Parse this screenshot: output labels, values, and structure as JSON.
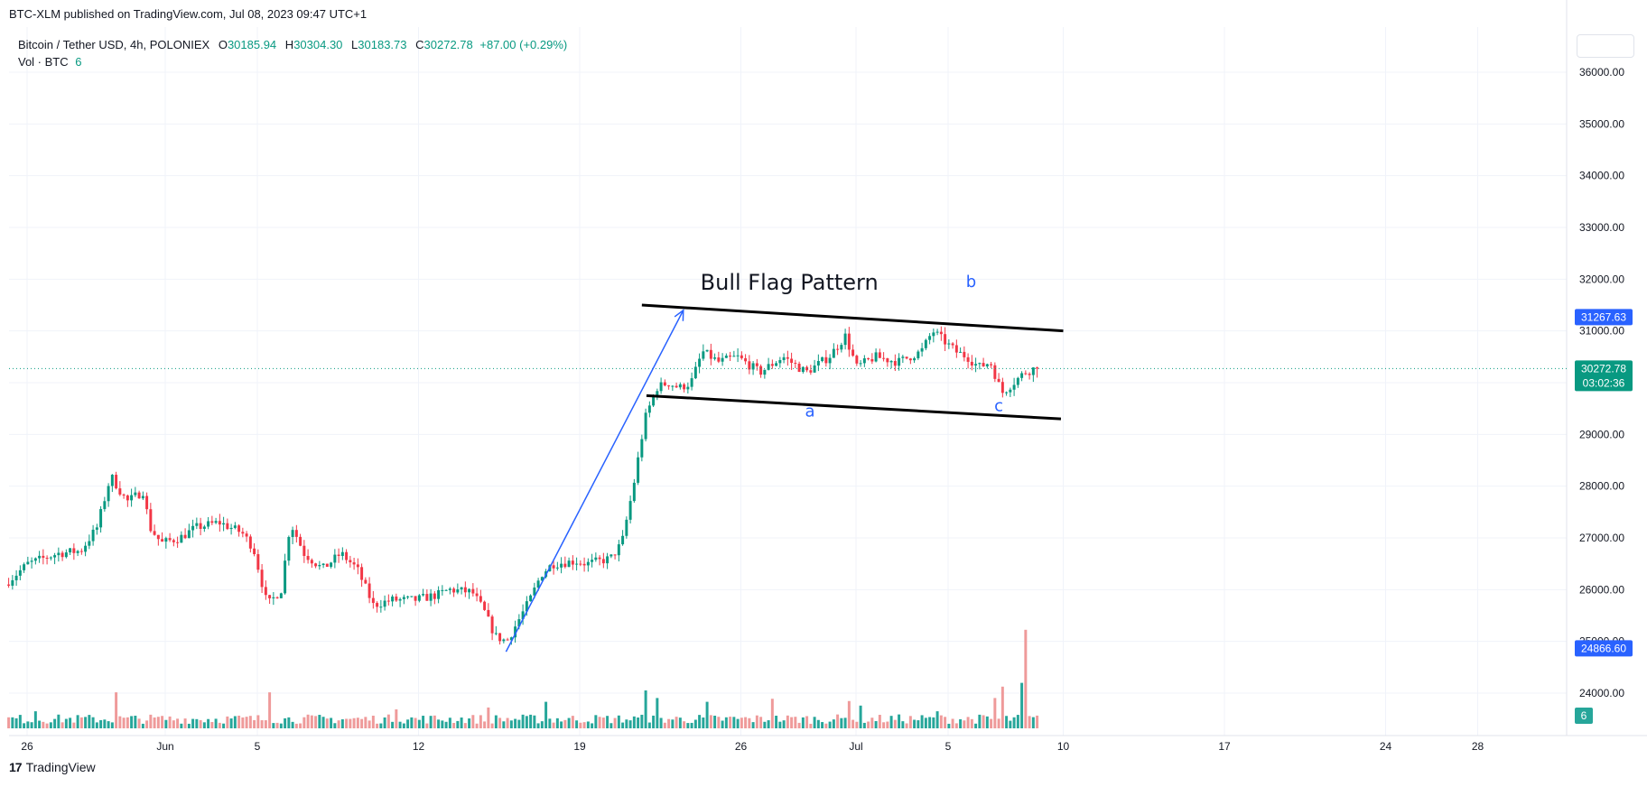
{
  "header": {
    "publish_line": "BTC-XLM published on TradingView.com, Jul 08, 2023 09:47 UTC+1"
  },
  "legend": {
    "symbol_line": "Bitcoin / Tether USD, 4h, POLONIEX",
    "open_label": "O",
    "open": "30185.94",
    "high_label": "H",
    "high": "30304.30",
    "low_label": "L",
    "low": "30183.73",
    "close_label": "C",
    "close": "30272.78",
    "change": "+87.00 (+0.29%)",
    "vol_label": "Vol · BTC",
    "vol_value": "6"
  },
  "footer": {
    "brand": "TradingView"
  },
  "colors": {
    "up": "#089981",
    "down": "#f23645",
    "vol_up": "#26a69a",
    "vol_down": "#ef9a9a",
    "annotation": "#2962ff",
    "grid": "#f0f3fa"
  },
  "chart_data": {
    "type": "candlestick",
    "symbol": "Bitcoin / Tether USD",
    "interval": "4h",
    "exchange": "POLONIEX",
    "ylim": [
      23700,
      36500
    ],
    "y_ticks": [
      24000,
      25000,
      26000,
      27000,
      28000,
      29000,
      30000,
      31000,
      32000,
      33000,
      34000,
      35000,
      36000
    ],
    "y_tick_labels": [
      "24000.00",
      "25000.00",
      "26000.00",
      "27000.00",
      "28000.00",
      "29000.00",
      "30000.00",
      "31000.00",
      "32000.00",
      "33000.00",
      "34000.00",
      "35000.00",
      "36000.00"
    ],
    "x_ticks": [
      {
        "label": "26",
        "day": -6
      },
      {
        "label": "Jun",
        "day": 0
      },
      {
        "label": "5",
        "day": 4
      },
      {
        "label": "12",
        "day": 11
      },
      {
        "label": "19",
        "day": 18
      },
      {
        "label": "26",
        "day": 25
      },
      {
        "label": "Jul",
        "day": 30
      },
      {
        "label": "5",
        "day": 34
      },
      {
        "label": "10",
        "day": 39
      },
      {
        "label": "17",
        "day": 46
      },
      {
        "label": "24",
        "day": 53
      },
      {
        "label": "28",
        "day": 57
      }
    ],
    "price_path": [
      [
        -6.8,
        26100
      ],
      [
        -5.8,
        26500
      ],
      [
        -4.5,
        26700
      ],
      [
        -3.5,
        26750
      ],
      [
        -2.8,
        27200
      ],
      [
        -2.2,
        28200
      ],
      [
        -1.5,
        27700
      ],
      [
        -0.8,
        27900
      ],
      [
        -0.5,
        27200
      ],
      [
        0.0,
        26900
      ],
      [
        0.8,
        27000
      ],
      [
        1.5,
        27200
      ],
      [
        2.5,
        27300
      ],
      [
        3.5,
        27100
      ],
      [
        4.0,
        26800
      ],
      [
        4.6,
        25700
      ],
      [
        5.2,
        26000
      ],
      [
        5.6,
        27300
      ],
      [
        6.2,
        26700
      ],
      [
        7.0,
        26400
      ],
      [
        7.8,
        26700
      ],
      [
        8.5,
        26400
      ],
      [
        9.2,
        25700
      ],
      [
        10.0,
        25800
      ],
      [
        11.0,
        25800
      ],
      [
        12.0,
        25900
      ],
      [
        12.5,
        26000
      ],
      [
        13.5,
        25950
      ],
      [
        14.0,
        25600
      ],
      [
        14.5,
        25100
      ],
      [
        15.0,
        25000
      ],
      [
        15.5,
        25400
      ],
      [
        16.0,
        25800
      ],
      [
        16.5,
        26300
      ],
      [
        17.0,
        26500
      ],
      [
        18.0,
        26550
      ],
      [
        18.5,
        26500
      ],
      [
        19.5,
        26600
      ],
      [
        20.0,
        26900
      ],
      [
        20.5,
        28000
      ],
      [
        21.0,
        29300
      ],
      [
        21.5,
        29900
      ],
      [
        22.0,
        30000
      ],
      [
        22.5,
        29900
      ],
      [
        23.0,
        30000
      ],
      [
        23.5,
        30600
      ],
      [
        24.2,
        30400
      ],
      [
        25.0,
        30500
      ],
      [
        26.0,
        30200
      ],
      [
        27.0,
        30500
      ],
      [
        28.0,
        30200
      ],
      [
        29.0,
        30500
      ],
      [
        29.7,
        30900
      ],
      [
        30.2,
        30300
      ],
      [
        31.0,
        30500
      ],
      [
        32.0,
        30400
      ],
      [
        33.0,
        30600
      ],
      [
        33.5,
        31000
      ],
      [
        34.0,
        30800
      ],
      [
        34.5,
        30600
      ],
      [
        35.0,
        30500
      ],
      [
        35.5,
        30300
      ],
      [
        36.0,
        30400
      ],
      [
        36.5,
        29800
      ],
      [
        37.0,
        30000
      ],
      [
        37.5,
        30200
      ],
      [
        37.9,
        30272.78
      ]
    ],
    "volume_spikes": [
      {
        "day": -5.7,
        "value": 0.45
      },
      {
        "day": -2.2,
        "value": 0.95
      },
      {
        "day": 4.6,
        "value": 0.95
      },
      {
        "day": 10.0,
        "value": 0.5
      },
      {
        "day": 14.0,
        "value": 0.55
      },
      {
        "day": 16.5,
        "value": 0.7
      },
      {
        "day": 20.8,
        "value": 1.0
      },
      {
        "day": 21.3,
        "value": 0.8
      },
      {
        "day": 23.5,
        "value": 0.7
      },
      {
        "day": 26.3,
        "value": 0.78
      },
      {
        "day": 29.7,
        "value": 0.72
      },
      {
        "day": 30.2,
        "value": 0.6
      },
      {
        "day": 33.5,
        "value": 0.45
      },
      {
        "day": 36.0,
        "value": 0.8
      },
      {
        "day": 36.3,
        "value": 1.1
      },
      {
        "day": 37.2,
        "value": 1.2
      },
      {
        "day": 37.4,
        "value": 2.6
      }
    ],
    "last_price": {
      "value": 30272.78,
      "label": "30272.78",
      "countdown": "03:02:36"
    },
    "price_labels": [
      {
        "value": 31267.63,
        "label": "31267.63"
      },
      {
        "value": 24866.6,
        "label": "24866.60"
      }
    ],
    "volume_badge": "6",
    "annotations": {
      "title": "Bull Flag Pattern",
      "wave_labels": [
        {
          "label": "a",
          "day": 28.0,
          "price": 29350
        },
        {
          "label": "b",
          "day": 35.0,
          "price": 31850
        },
        {
          "label": "c",
          "day": 36.2,
          "price": 29450
        }
      ],
      "flag_upper": [
        [
          20.7,
          31500
        ],
        [
          39.0,
          31000
        ]
      ],
      "flag_lower": [
        [
          20.9,
          29750
        ],
        [
          38.9,
          29300
        ]
      ],
      "arrow": [
        [
          14.8,
          24800
        ],
        [
          22.5,
          31400
        ]
      ]
    }
  }
}
